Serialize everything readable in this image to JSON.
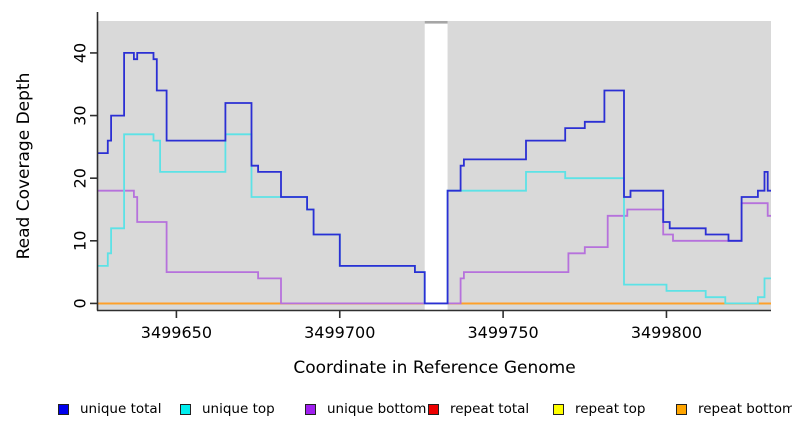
{
  "figure": {
    "colors": {
      "background": "#ffffff",
      "plot_background": "#d9d9d9",
      "axis": "#2f2f2f",
      "gap_fill": "#ffffff",
      "gap_top_bar": "#a6a6a6"
    }
  },
  "chart_data": {
    "type": "line",
    "subtype": "step-coverage",
    "title": "",
    "xlabel": "Coordinate in Reference Genome",
    "ylabel": "Read Coverage Depth",
    "xlim": [
      3499626,
      3499832
    ],
    "ylim": [
      0,
      45
    ],
    "grid": false,
    "x_ticks": [
      "3499650",
      "3499700",
      "3499750",
      "3499800"
    ],
    "x_tick_values": [
      3499650,
      3499700,
      3499750,
      3499800
    ],
    "y_ticks": [
      "0",
      "10",
      "20",
      "30",
      "40"
    ],
    "y_tick_values": [
      0,
      10,
      20,
      30,
      40
    ],
    "gap_region": {
      "start": 3499726,
      "end": 3499733
    },
    "x_end": 3499832,
    "series": [
      {
        "name": "repeat total",
        "color": "#ee0000",
        "steps": [
          [
            3499626,
            0
          ]
        ]
      },
      {
        "name": "repeat top",
        "color": "#ffee00",
        "steps": [
          [
            3499626,
            0
          ]
        ]
      },
      {
        "name": "repeat bottom",
        "color": "#ff9f2a",
        "steps": [
          [
            3499626,
            0
          ]
        ]
      },
      {
        "name": "unique bottom",
        "color": "#b671dc",
        "steps": [
          [
            3499626,
            18
          ],
          [
            3499637,
            17
          ],
          [
            3499638,
            13
          ],
          [
            3499647,
            5
          ],
          [
            3499675,
            4
          ],
          [
            3499682,
            0
          ],
          [
            3499737,
            4
          ],
          [
            3499738,
            5
          ],
          [
            3499770,
            8
          ],
          [
            3499775,
            9
          ],
          [
            3499782,
            14
          ],
          [
            3499788,
            15
          ],
          [
            3499799,
            11
          ],
          [
            3499802,
            10
          ],
          [
            3499823,
            16
          ],
          [
            3499831,
            14
          ]
        ]
      },
      {
        "name": "unique top",
        "color": "#5ce2e6",
        "steps": [
          [
            3499626,
            6
          ],
          [
            3499629,
            8
          ],
          [
            3499630,
            12
          ],
          [
            3499634,
            27
          ],
          [
            3499643,
            26
          ],
          [
            3499645,
            21
          ],
          [
            3499665,
            27
          ],
          [
            3499673,
            17
          ],
          [
            3499690,
            15
          ],
          [
            3499692,
            11
          ],
          [
            3499700,
            6
          ],
          [
            3499723,
            5
          ],
          [
            3499726,
            0
          ],
          [
            3499733,
            18
          ],
          [
            3499757,
            21
          ],
          [
            3499769,
            20
          ],
          [
            3499787,
            3
          ],
          [
            3499800,
            2
          ],
          [
            3499812,
            1
          ],
          [
            3499818,
            0
          ],
          [
            3499828,
            1
          ],
          [
            3499830,
            4
          ]
        ]
      },
      {
        "name": "unique total",
        "color": "#2b2fd4",
        "steps": [
          [
            3499626,
            24
          ],
          [
            3499629,
            26
          ],
          [
            3499630,
            30
          ],
          [
            3499634,
            40
          ],
          [
            3499637,
            39
          ],
          [
            3499638,
            40
          ],
          [
            3499643,
            39
          ],
          [
            3499644,
            34
          ],
          [
            3499647,
            26
          ],
          [
            3499665,
            32
          ],
          [
            3499673,
            22
          ],
          [
            3499675,
            21
          ],
          [
            3499682,
            17
          ],
          [
            3499690,
            15
          ],
          [
            3499692,
            11
          ],
          [
            3499700,
            6
          ],
          [
            3499723,
            5
          ],
          [
            3499726,
            0
          ],
          [
            3499733,
            18
          ],
          [
            3499737,
            22
          ],
          [
            3499738,
            23
          ],
          [
            3499757,
            26
          ],
          [
            3499769,
            28
          ],
          [
            3499775,
            29
          ],
          [
            3499781,
            34
          ],
          [
            3499787,
            17
          ],
          [
            3499789,
            18
          ],
          [
            3499799,
            13
          ],
          [
            3499801,
            12
          ],
          [
            3499812,
            11
          ],
          [
            3499819,
            10
          ],
          [
            3499823,
            17
          ],
          [
            3499828,
            18
          ],
          [
            3499830,
            21
          ],
          [
            3499831,
            18
          ]
        ]
      }
    ],
    "legend": [
      {
        "label": "unique total",
        "color": "#0000ee"
      },
      {
        "label": "unique top",
        "color": "#00eeee"
      },
      {
        "label": "unique bottom",
        "color": "#a020f0"
      },
      {
        "label": "repeat total",
        "color": "#ee0000"
      },
      {
        "label": "repeat top",
        "color": "#ffff00"
      },
      {
        "label": "repeat bottom",
        "color": "#ffa500"
      }
    ],
    "legend_position": "bottom"
  }
}
